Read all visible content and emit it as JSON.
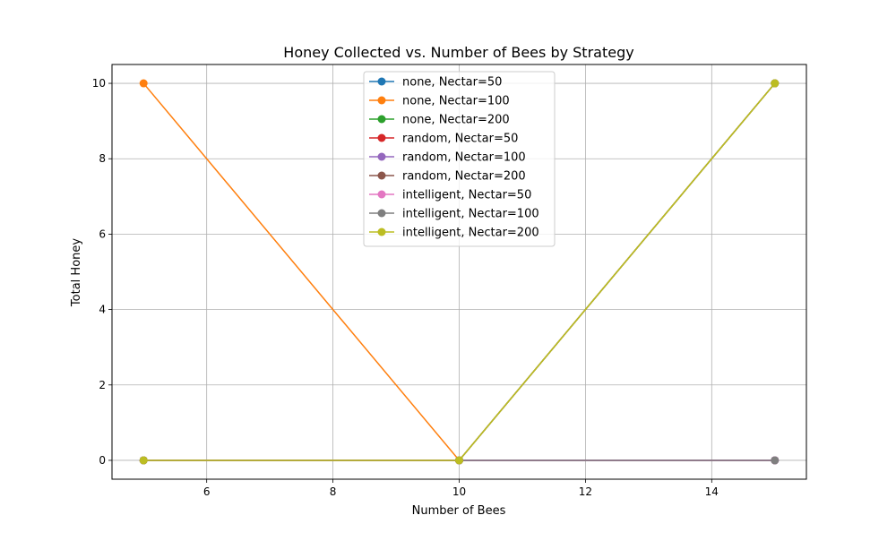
{
  "chart_data": {
    "type": "line",
    "title": "Honey Collected vs. Number of Bees by Strategy",
    "xlabel": "Number of Bees",
    "ylabel": "Total Honey",
    "x": [
      5,
      10,
      15
    ],
    "xlim": [
      4.5,
      15.5
    ],
    "ylim": [
      -0.5,
      10.5
    ],
    "xticks": [
      6,
      8,
      10,
      12,
      14
    ],
    "yticks": [
      0,
      2,
      4,
      6,
      8,
      10
    ],
    "grid": true,
    "legend_position": "upper center",
    "series": [
      {
        "name": "none, Nectar=50",
        "color": "#1f77b4",
        "values": [
          0,
          0,
          0
        ]
      },
      {
        "name": "none, Nectar=100",
        "color": "#ff7f0e",
        "values": [
          10,
          0,
          10
        ]
      },
      {
        "name": "none, Nectar=200",
        "color": "#2ca02c",
        "values": [
          0,
          0,
          10
        ]
      },
      {
        "name": "random, Nectar=50",
        "color": "#d62728",
        "values": [
          0,
          0,
          0
        ]
      },
      {
        "name": "random, Nectar=100",
        "color": "#9467bd",
        "values": [
          0,
          0,
          0
        ]
      },
      {
        "name": "random, Nectar=200",
        "color": "#8c564b",
        "values": [
          0,
          0,
          10
        ]
      },
      {
        "name": "intelligent, Nectar=50",
        "color": "#e377c2",
        "values": [
          0,
          0,
          0
        ]
      },
      {
        "name": "intelligent, Nectar=100",
        "color": "#7f7f7f",
        "values": [
          0,
          0,
          0
        ]
      },
      {
        "name": "intelligent, Nectar=200",
        "color": "#bcbd22",
        "values": [
          0,
          0,
          10
        ]
      }
    ]
  }
}
